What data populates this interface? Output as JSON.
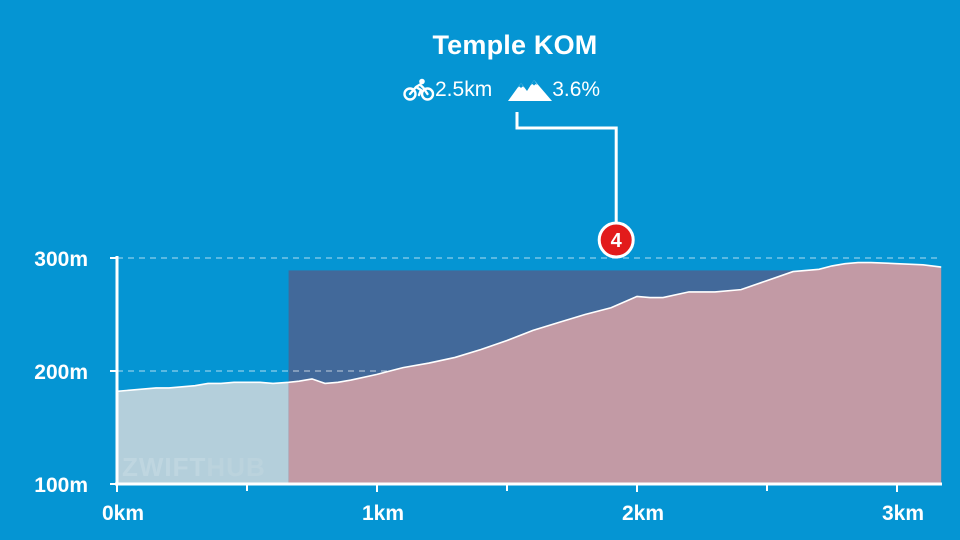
{
  "segment": {
    "name": "Temple KOM",
    "distance": "2.5km",
    "gradient": "3.6%",
    "marker_number": "4"
  },
  "icons": {
    "distance": "bicycle-icon",
    "gradient": "mountain-icon"
  },
  "watermark": {
    "part1": "ZWIFT",
    "part2": "HUB",
    "color1": "#d5e4ea",
    "color2": "#c9dbe3"
  },
  "colors": {
    "background": "#0595d3",
    "overlay": "#42699a",
    "fill_before": "#b4cfdb",
    "fill_segment": "#c29aa5",
    "badge": "#e21b1b"
  },
  "chart_data": {
    "type": "area",
    "title": "",
    "xlabel": "",
    "ylabel": "",
    "xlim": [
      0,
      3.17
    ],
    "ylim": [
      100,
      300
    ],
    "x_ticks": [
      {
        "value": 0,
        "label": "0km"
      },
      {
        "value": 1,
        "label": "1km"
      },
      {
        "value": 2,
        "label": "2km"
      },
      {
        "value": 3,
        "label": "3km"
      }
    ],
    "x_minor_ticks": [
      0.5,
      1.5,
      2.5
    ],
    "y_ticks": [
      {
        "value": 100,
        "label": "100m"
      },
      {
        "value": 200,
        "label": "200m"
      },
      {
        "value": 300,
        "label": "300m"
      }
    ],
    "y_gridlines": [
      200,
      300
    ],
    "segment_start_km": 0.66,
    "segment_top_m": 289,
    "marker_at_km": 1.92,
    "series": [
      {
        "x": [
          0,
          0.05,
          0.1,
          0.15,
          0.2,
          0.25,
          0.3,
          0.35,
          0.4,
          0.45,
          0.5,
          0.55,
          0.6,
          0.66,
          0.7,
          0.75,
          0.8,
          0.85,
          0.9,
          1.0,
          1.1,
          1.2,
          1.3,
          1.4,
          1.5,
          1.6,
          1.7,
          1.8,
          1.9,
          2.0,
          2.05,
          2.1,
          2.2,
          2.3,
          2.4,
          2.5,
          2.6,
          2.7,
          2.75,
          2.8,
          2.85,
          2.9,
          3.0,
          3.1,
          3.17
        ],
        "y": [
          182,
          183,
          184,
          185,
          185,
          186,
          187,
          189,
          189,
          190,
          190,
          190,
          189,
          190,
          191,
          193,
          189,
          190,
          192,
          197,
          203,
          207,
          212,
          219,
          227,
          236,
          243,
          250,
          256,
          266,
          265,
          265,
          270,
          270,
          272,
          280,
          288,
          290,
          293,
          295,
          296,
          296,
          295,
          294,
          292
        ]
      }
    ]
  }
}
